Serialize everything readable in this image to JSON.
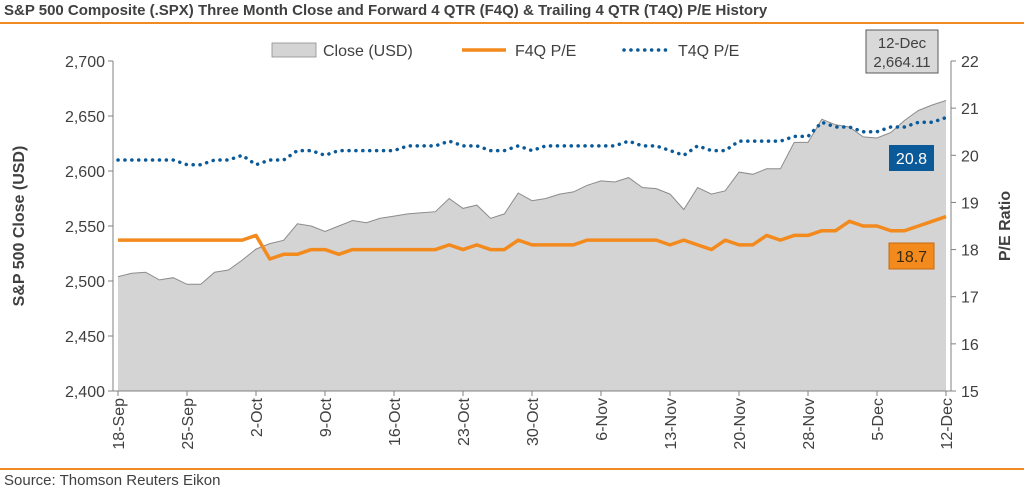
{
  "title": "S&P 500 Composite (.SPX) Three Month Close and Forward 4 QTR (F4Q) & Trailing 4 QTR (T4Q) P/E History",
  "source": "Source: Thomson Reuters Eikon",
  "colors": {
    "close_fill": "#d4d4d4",
    "close_edge": "#8c8c8c",
    "f4q": "#f28a1e",
    "t4q": "#0a5a9a",
    "rule": "#f08a24"
  },
  "chart_data": {
    "type": "area",
    "title": "S&P 500 Composite (.SPX) Three Month Close and Forward 4 QTR (F4Q) & Trailing 4 QTR (T4Q) P/E History",
    "xlabel": "",
    "ylabel": "S&P 500 Close (USD)",
    "y2label": "P/E Ratio",
    "ylim": [
      2400,
      2700
    ],
    "y2lim": [
      15,
      22
    ],
    "yticks": [
      "2,400",
      "2,450",
      "2,500",
      "2,550",
      "2,600",
      "2,650",
      "2,700"
    ],
    "y2ticks": [
      "15",
      "16",
      "17",
      "18",
      "19",
      "20",
      "21",
      "22"
    ],
    "x_tick_labels": [
      {
        "label": "18-Sep",
        "index": 0
      },
      {
        "label": "25-Sep",
        "index": 5
      },
      {
        "label": "2-Oct",
        "index": 10
      },
      {
        "label": "9-Oct",
        "index": 15
      },
      {
        "label": "16-Oct",
        "index": 20
      },
      {
        "label": "23-Oct",
        "index": 25
      },
      {
        "label": "30-Oct",
        "index": 30
      },
      {
        "label": "6-Nov",
        "index": 35
      },
      {
        "label": "13-Nov",
        "index": 40
      },
      {
        "label": "20-Nov",
        "index": 45
      },
      {
        "label": "28-Nov",
        "index": 50
      },
      {
        "label": "5-Dec",
        "index": 55
      },
      {
        "label": "12-Dec",
        "index": 60
      }
    ],
    "legend": [
      "Close (USD)",
      "F4Q P/E",
      "T4Q P/E"
    ],
    "legend_placement": "top",
    "series": [
      {
        "name": "Close (USD)",
        "axis": "left",
        "type": "area",
        "values": [
          2504,
          2507,
          2508,
          2501,
          2503,
          2497,
          2497,
          2508,
          2510,
          2519,
          2529,
          2534,
          2537,
          2552,
          2550,
          2545,
          2550,
          2555,
          2553,
          2557,
          2559,
          2561,
          2562,
          2563,
          2575,
          2566,
          2569,
          2557,
          2561,
          2580,
          2573,
          2575,
          2579,
          2581,
          2587,
          2591,
          2590,
          2594,
          2585,
          2584,
          2579,
          2565,
          2585,
          2579,
          2582,
          2599,
          2597,
          2602,
          2602,
          2626,
          2626,
          2647,
          2642,
          2640,
          2631,
          2630,
          2635,
          2646,
          2655,
          2660,
          2664.11
        ]
      },
      {
        "name": "F4Q P/E",
        "axis": "right",
        "type": "line",
        "values": [
          18.2,
          18.2,
          18.2,
          18.2,
          18.2,
          18.2,
          18.2,
          18.2,
          18.2,
          18.2,
          18.3,
          17.8,
          17.9,
          17.9,
          18.0,
          18.0,
          17.9,
          18.0,
          18.0,
          18.0,
          18.0,
          18.0,
          18.0,
          18.0,
          18.1,
          18.0,
          18.1,
          18.0,
          18.0,
          18.2,
          18.1,
          18.1,
          18.1,
          18.1,
          18.2,
          18.2,
          18.2,
          18.2,
          18.2,
          18.2,
          18.1,
          18.2,
          18.1,
          18.0,
          18.2,
          18.1,
          18.1,
          18.3,
          18.2,
          18.3,
          18.3,
          18.4,
          18.4,
          18.6,
          18.5,
          18.5,
          18.4,
          18.4,
          18.5,
          18.6,
          18.7
        ]
      },
      {
        "name": "T4Q P/E",
        "axis": "right",
        "type": "line",
        "dotted": true,
        "values": [
          19.9,
          19.9,
          19.9,
          19.9,
          19.9,
          19.8,
          19.8,
          19.9,
          19.9,
          20.0,
          19.8,
          19.9,
          19.9,
          20.1,
          20.1,
          20.0,
          20.1,
          20.1,
          20.1,
          20.1,
          20.1,
          20.2,
          20.2,
          20.2,
          20.3,
          20.2,
          20.2,
          20.1,
          20.1,
          20.2,
          20.1,
          20.2,
          20.2,
          20.2,
          20.2,
          20.2,
          20.2,
          20.3,
          20.2,
          20.2,
          20.1,
          20.0,
          20.2,
          20.1,
          20.1,
          20.3,
          20.3,
          20.3,
          20.3,
          20.4,
          20.4,
          20.7,
          20.6,
          20.6,
          20.5,
          20.5,
          20.6,
          20.6,
          20.7,
          20.7,
          20.8
        ]
      }
    ],
    "annotations": {
      "last_date": "12-Dec",
      "last_close": "2,664.11",
      "t4q_last": "20.8",
      "f4q_last": "18.7"
    }
  }
}
